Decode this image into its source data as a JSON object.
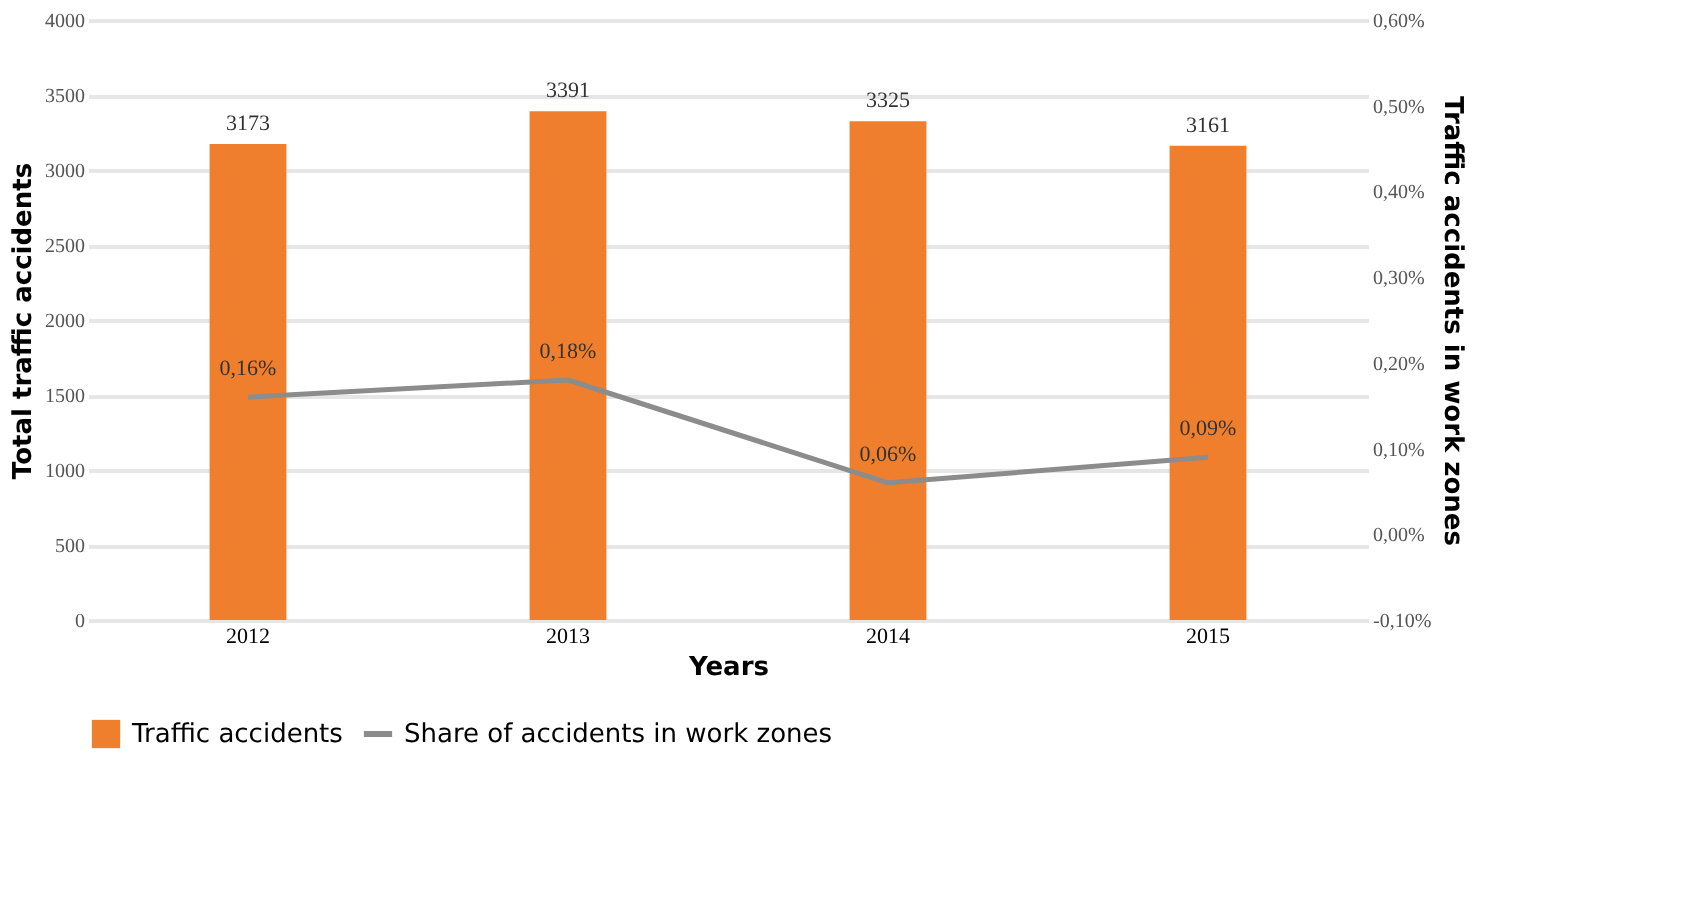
{
  "chart_data": {
    "type": "bar",
    "xlabel": "Years",
    "ylabel": "Total traffic accidents",
    "y2label": "Traffic accidents in work zones",
    "categories": [
      "2012",
      "2013",
      "2014",
      "2015"
    ],
    "series": [
      {
        "name": "Traffic accidents",
        "color": "#f07f2d",
        "values": [
          3173,
          3391,
          3325,
          3161
        ],
        "value_labels": [
          "3173",
          "3391",
          "3325",
          "3161"
        ]
      },
      {
        "name": "Share of accidents in work zones",
        "type": "line",
        "axis": "y2",
        "color": "#8c8c8c",
        "values": [
          0.16,
          0.18,
          0.06,
          0.09
        ],
        "value_labels": [
          "0,16%",
          "0,18%",
          "0,06%",
          "0,09%"
        ]
      }
    ],
    "ylim": [
      0,
      4000
    ],
    "yticks": [
      0,
      500,
      1000,
      1500,
      2000,
      2500,
      3000,
      3500,
      4000
    ],
    "y2lim": [
      -0.1,
      0.6
    ],
    "y2ticks": [
      {
        "value": -0.1,
        "label": "-0,10%"
      },
      {
        "value": 0,
        "label": "0,00%"
      },
      {
        "value": 0.1,
        "label": "0,10%"
      },
      {
        "value": 0.2,
        "label": "0,20%"
      },
      {
        "value": 0.3,
        "label": "0,30%"
      },
      {
        "value": 0.4,
        "label": "0,40%"
      },
      {
        "value": 0.5,
        "label": "0,50%"
      },
      {
        "value": 0.6,
        "label": "0,60%"
      }
    ],
    "grid": "y",
    "legend": "bottom",
    "line_style": "solid",
    "marker": "none"
  }
}
